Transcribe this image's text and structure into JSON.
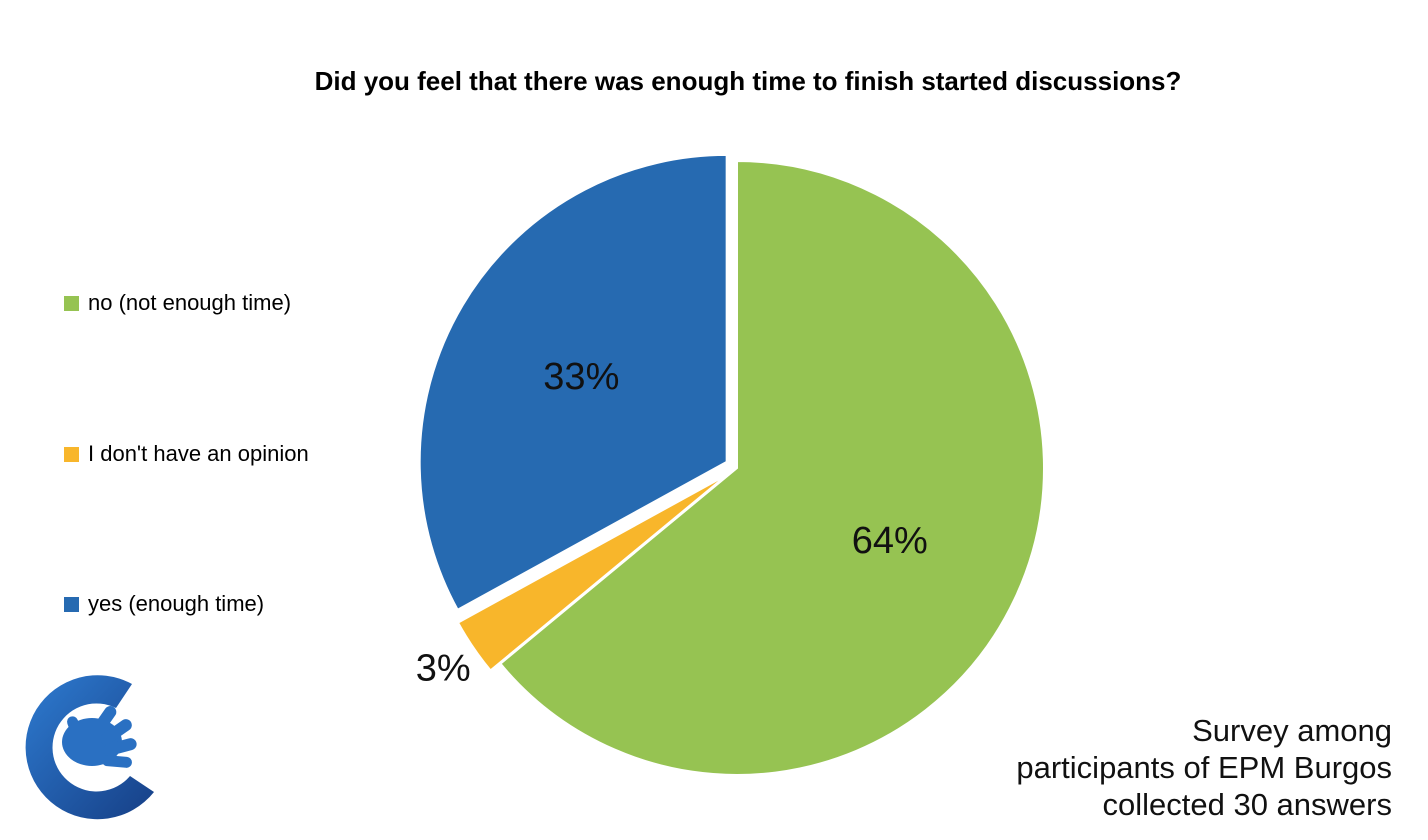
{
  "chart_data": {
    "type": "pie",
    "title": "Did you feel that there was enough time to finish started discussions?",
    "slices": [
      {
        "label": "no (not enough time)",
        "value": 64,
        "data_label": "64%",
        "color": "#96C352",
        "exploded": false
      },
      {
        "label": "I don't have an opinion",
        "value": 3,
        "data_label": "3%",
        "color": "#F8B62B",
        "exploded": true
      },
      {
        "label": "yes (enough time)",
        "value": 33,
        "data_label": "33%",
        "color": "#266AB1",
        "exploded": true
      }
    ],
    "legend_position": "left",
    "start_angle_deg": 0,
    "direction": "clockwise"
  },
  "note": {
    "lines": [
      "Survey among",
      "participants of EPM Burgos",
      "collected 30 answers"
    ]
  },
  "logo": {
    "icon": "hand-in-circle-logo",
    "color": "#1E5AA8"
  }
}
